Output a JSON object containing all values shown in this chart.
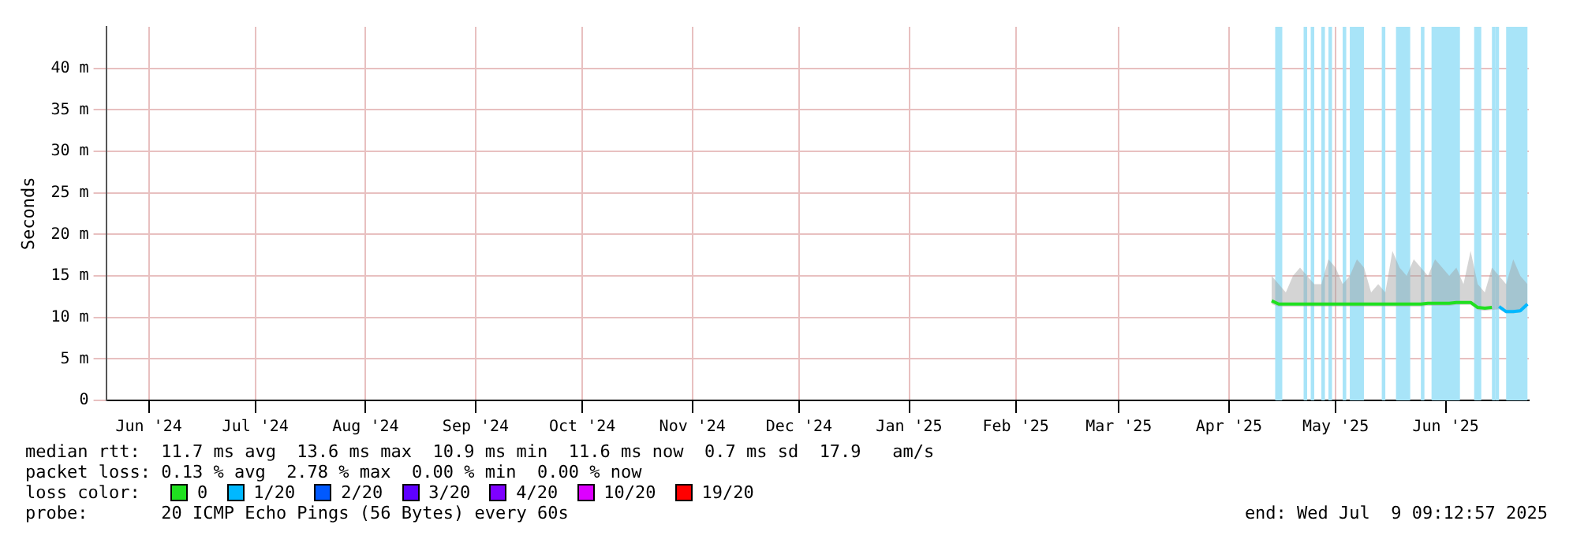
{
  "chart_data": {
    "type": "line",
    "ylabel": "Seconds",
    "legend_title": "loss color:",
    "legend": "bottom",
    "grid": true,
    "marker": "none",
    "line_style": "solid",
    "x": [
      "2025-04-28",
      "2025-04-30",
      "2025-05-02",
      "2025-05-04",
      "2025-05-06",
      "2025-05-08",
      "2025-05-10",
      "2025-05-12",
      "2025-05-14",
      "2025-05-16",
      "2025-05-18",
      "2025-05-20",
      "2025-05-22",
      "2025-05-24",
      "2025-05-26",
      "2025-05-28",
      "2025-05-30",
      "2025-06-01",
      "2025-06-03",
      "2025-06-05",
      "2025-06-07",
      "2025-06-09",
      "2025-06-11",
      "2025-06-13",
      "2025-06-15",
      "2025-06-17",
      "2025-06-19",
      "2025-06-21",
      "2025-06-23",
      "2025-06-25",
      "2025-06-27",
      "2025-06-29",
      "2025-07-01",
      "2025-07-03",
      "2025-07-05",
      "2025-07-07",
      "2025-07-09"
    ],
    "xlim": [
      "2024-06-04",
      "2025-07-09T09:12"
    ],
    "xticks": [
      {
        "value": "2024-06-16",
        "label": "Jun '24"
      },
      {
        "value": "2024-07-16",
        "label": "Jul '24"
      },
      {
        "value": "2024-08-16",
        "label": "Aug '24"
      },
      {
        "value": "2024-09-16",
        "label": "Sep '24"
      },
      {
        "value": "2024-10-16",
        "label": "Oct '24"
      },
      {
        "value": "2024-11-16",
        "label": "Nov '24"
      },
      {
        "value": "2024-12-16",
        "label": "Dec '24"
      },
      {
        "value": "2025-01-16",
        "label": "Jan '25"
      },
      {
        "value": "2025-02-15",
        "label": "Feb '25"
      },
      {
        "value": "2025-03-16",
        "label": "Mar '25"
      },
      {
        "value": "2025-04-16",
        "label": "Apr '25"
      },
      {
        "value": "2025-05-16",
        "label": "May '25"
      },
      {
        "value": "2025-06-16",
        "label": "Jun '25"
      }
    ],
    "ylim": [
      0,
      45
    ],
    "yticks": [
      0,
      {
        "value": 5,
        "label": "5 m"
      },
      {
        "value": 10,
        "label": "10 m"
      },
      {
        "value": 15,
        "label": "15 m"
      },
      {
        "value": 20,
        "label": "20 m"
      },
      {
        "value": 25,
        "label": "25 m"
      },
      {
        "value": 30,
        "label": "30 m"
      },
      {
        "value": 35,
        "label": "35 m"
      },
      {
        "value": 40,
        "label": "40 m"
      }
    ],
    "series": [
      {
        "name": "0",
        "color": "#20e020",
        "values": [
          12.0,
          11.6,
          11.6,
          11.6,
          11.6,
          11.6,
          11.6,
          11.6,
          11.6,
          11.6,
          11.6,
          11.6,
          11.6,
          11.6,
          11.6,
          11.6,
          11.6,
          11.6,
          11.6,
          11.6,
          11.6,
          11.6,
          11.7,
          11.7,
          11.7,
          11.7,
          11.8,
          11.8,
          11.8,
          11.2,
          11.1,
          11.2,
          null,
          null,
          null,
          null,
          null
        ],
        "lower": [
          11.6,
          11.3,
          11.3,
          11.3,
          11.3,
          11.3,
          11.3,
          11.3,
          11.3,
          11.3,
          11.3,
          11.3,
          11.3,
          11.3,
          11.3,
          11.3,
          11.3,
          11.3,
          11.3,
          11.3,
          11.3,
          11.3,
          11.4,
          11.4,
          11.4,
          11.4,
          11.5,
          11.5,
          11.5,
          10.9,
          10.8,
          10.9,
          11.0,
          10.5,
          10.5,
          10.6,
          11.3
        ],
        "upper": [
          15,
          14,
          13,
          15,
          16,
          15,
          14,
          14,
          17,
          16,
          14,
          15,
          17,
          16,
          13,
          14,
          13,
          18,
          16,
          15,
          17,
          16,
          15,
          17,
          16,
          15,
          16,
          14,
          18,
          14,
          13,
          16,
          15,
          14,
          17,
          15,
          14
        ]
      },
      {
        "name": "1/20",
        "color": "#00b8ff",
        "values": [
          null,
          null,
          null,
          null,
          null,
          null,
          null,
          null,
          null,
          null,
          null,
          null,
          null,
          null,
          null,
          null,
          null,
          null,
          null,
          null,
          null,
          null,
          null,
          null,
          null,
          null,
          null,
          null,
          null,
          null,
          null,
          null,
          11.3,
          10.7,
          10.7,
          10.8,
          11.6
        ]
      },
      {
        "name": "2/20",
        "color": "#0059ff",
        "values": [
          null,
          null,
          null,
          null,
          null,
          null,
          null,
          null,
          null,
          null,
          null,
          null,
          null,
          null,
          null,
          null,
          null,
          null,
          null,
          null,
          null,
          null,
          null,
          null,
          null,
          null,
          null,
          null,
          null,
          null,
          null,
          null,
          null,
          null,
          null,
          null,
          null
        ]
      },
      {
        "name": "3/20",
        "color": "#5e00ff",
        "values": [
          null,
          null,
          null,
          null,
          null,
          null,
          null,
          null,
          null,
          null,
          null,
          null,
          null,
          null,
          null,
          null,
          null,
          null,
          null,
          null,
          null,
          null,
          null,
          null,
          null,
          null,
          null,
          null,
          null,
          null,
          null,
          null,
          null,
          null,
          null,
          null,
          null
        ]
      },
      {
        "name": "4/20",
        "color": "#7e00ff",
        "values": [
          null,
          null,
          null,
          null,
          null,
          null,
          null,
          null,
          null,
          null,
          null,
          null,
          null,
          null,
          null,
          null,
          null,
          null,
          null,
          null,
          null,
          null,
          null,
          null,
          null,
          null,
          null,
          null,
          null,
          null,
          null,
          null,
          null,
          null,
          null,
          null,
          null
        ]
      },
      {
        "name": "10/20",
        "color": "#dd00ff",
        "values": [
          null,
          null,
          null,
          null,
          null,
          null,
          null,
          null,
          null,
          null,
          null,
          null,
          null,
          null,
          null,
          null,
          null,
          null,
          null,
          null,
          null,
          null,
          null,
          null,
          null,
          null,
          null,
          null,
          null,
          null,
          null,
          null,
          null,
          null,
          null,
          null,
          null
        ]
      },
      {
        "name": "19/20",
        "color": "#ff0000",
        "values": [
          null,
          null,
          null,
          null,
          null,
          null,
          null,
          null,
          null,
          null,
          null,
          null,
          null,
          null,
          null,
          null,
          null,
          null,
          null,
          null,
          null,
          null,
          null,
          null,
          null,
          null,
          null,
          null,
          null,
          null,
          null,
          null,
          null,
          null,
          null,
          null,
          null
        ]
      }
    ],
    "bands": [
      {
        "axis": "x",
        "from": "2025-04-29",
        "to": "2025-05-01",
        "color": "#a8e4f8"
      },
      {
        "axis": "x",
        "from": "2025-05-07",
        "to": "2025-05-08",
        "color": "#a8e4f8"
      },
      {
        "axis": "x",
        "from": "2025-05-09",
        "to": "2025-05-10",
        "color": "#a8e4f8"
      },
      {
        "axis": "x",
        "from": "2025-05-12",
        "to": "2025-05-13",
        "color": "#a8e4f8"
      },
      {
        "axis": "x",
        "from": "2025-05-14",
        "to": "2025-05-15",
        "color": "#a8e4f8"
      },
      {
        "axis": "x",
        "from": "2025-05-18",
        "to": "2025-05-19",
        "color": "#a8e4f8"
      },
      {
        "axis": "x",
        "from": "2025-05-20",
        "to": "2025-05-24",
        "color": "#a8e4f8"
      },
      {
        "axis": "x",
        "from": "2025-05-29",
        "to": "2025-05-30",
        "color": "#a8e4f8"
      },
      {
        "axis": "x",
        "from": "2025-06-02",
        "to": "2025-06-06",
        "color": "#a8e4f8"
      },
      {
        "axis": "x",
        "from": "2025-06-09",
        "to": "2025-06-10",
        "color": "#a8e4f8"
      },
      {
        "axis": "x",
        "from": "2025-06-12",
        "to": "2025-06-20",
        "color": "#a8e4f8"
      },
      {
        "axis": "x",
        "from": "2025-06-24",
        "to": "2025-06-26",
        "color": "#a8e4f8"
      },
      {
        "axis": "x",
        "from": "2025-06-29",
        "to": "2025-06-30",
        "color": "#a8e4f8"
      },
      {
        "axis": "x",
        "from": "2025-06-30",
        "to": "2025-07-01",
        "color": "#a8e4f8"
      },
      {
        "axis": "x",
        "from": "2025-07-03",
        "to": "2025-07-09",
        "color": "#a8e4f8"
      }
    ],
    "annotations": [
      "median rtt:  11.7 ms avg  13.6 ms max  10.9 ms min  11.6 ms now  0.7 ms sd  17.9   am/s",
      "packet loss: 0.13 % avg  2.78 % max  0.00 % min  0.00 % now",
      "probe:       20 ICMP Echo Pings (56 Bytes) every 60s",
      "end: Wed Jul  9 09:12:57 2025"
    ]
  }
}
